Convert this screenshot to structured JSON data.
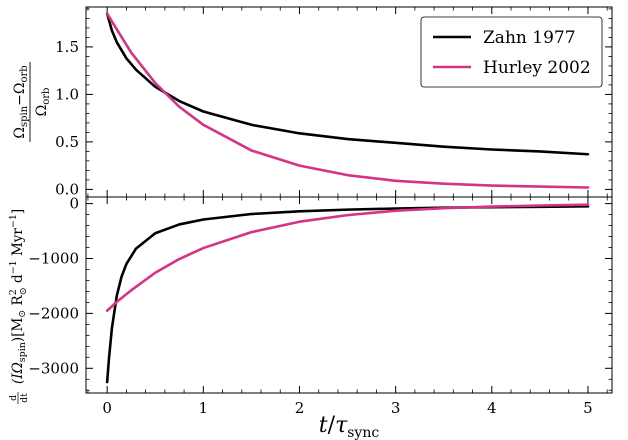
{
  "chart_data": [
    {
      "type": "line",
      "panel": "top",
      "ylabel": {
        "num_a": "Ω",
        "num_a_sub": "spin",
        "num_op": "−",
        "num_b": "Ω",
        "num_b_sub": "orb",
        "den": "Ω",
        "den_sub": "orb"
      },
      "xlim": [
        -0.22,
        5.25
      ],
      "ylim": [
        -0.08,
        1.92
      ],
      "yticks": [
        0.0,
        0.5,
        1.0,
        1.5
      ],
      "ytick_labels": [
        "0.0",
        "0.5",
        "1.0",
        "1.5"
      ],
      "grid": false,
      "legend": "top-right",
      "series": [
        {
          "name": "Zahn 1977",
          "color": "#000000",
          "x": [
            0,
            0.05,
            0.1,
            0.2,
            0.3,
            0.5,
            0.75,
            1.0,
            1.5,
            2.0,
            2.5,
            3.0,
            3.5,
            4.0,
            4.5,
            5.0
          ],
          "y": [
            1.85,
            1.67,
            1.55,
            1.38,
            1.26,
            1.08,
            0.93,
            0.82,
            0.68,
            0.59,
            0.53,
            0.49,
            0.45,
            0.42,
            0.4,
            0.37
          ]
        },
        {
          "name": "Hurley 2002",
          "color": "#d63384",
          "x": [
            0,
            0.25,
            0.5,
            0.75,
            1.0,
            1.5,
            2.0,
            2.5,
            3.0,
            3.5,
            4.0,
            4.5,
            5.0
          ],
          "y": [
            1.85,
            1.44,
            1.12,
            0.87,
            0.68,
            0.41,
            0.25,
            0.15,
            0.09,
            0.06,
            0.04,
            0.03,
            0.02
          ]
        }
      ]
    },
    {
      "type": "line",
      "panel": "bottom",
      "xlabel": {
        "main": "t",
        "sep": "/",
        "tau": "τ",
        "tau_sub": "sync"
      },
      "ylabel": {
        "deriv_num": "d",
        "deriv_den": "dt",
        "body": "(IΩ",
        "body_sub": "spin",
        "body_close": ")[M",
        "msun": "⊙",
        "r": " R",
        "r_sup": "2",
        "r_sub": "⊙",
        "units_tail": " d",
        "d_sup": "−1",
        "myr": " Myr",
        "myr_sup": "−1",
        "end": "]"
      },
      "xlim": [
        -0.22,
        5.25
      ],
      "ylim": [
        -3450,
        120
      ],
      "xticks": [
        0,
        1,
        2,
        3,
        4,
        5
      ],
      "xtick_labels": [
        "0",
        "1",
        "2",
        "3",
        "4",
        "5"
      ],
      "yticks": [
        0,
        -1000,
        -2000,
        -3000
      ],
      "ytick_labels": [
        "0",
        "−1000",
        "−2000",
        "−3000"
      ],
      "grid": false,
      "series": [
        {
          "name": "Zahn 1977",
          "color": "#000000",
          "x": [
            0.0,
            0.02,
            0.05,
            0.1,
            0.15,
            0.2,
            0.3,
            0.5,
            0.75,
            1.0,
            1.5,
            2.0,
            2.5,
            3.0,
            3.5,
            4.0,
            4.5,
            5.0
          ],
          "y": [
            -3250,
            -2800,
            -2260,
            -1680,
            -1330,
            -1100,
            -820,
            -540,
            -380,
            -290,
            -190,
            -140,
            -110,
            -90,
            -75,
            -65,
            -58,
            -50
          ]
        },
        {
          "name": "Hurley 2002",
          "color": "#d63384",
          "x": [
            0.0,
            0.1,
            0.25,
            0.5,
            0.75,
            1.0,
            1.5,
            2.0,
            2.5,
            3.0,
            3.5,
            4.0,
            4.5,
            5.0
          ],
          "y": [
            -1950,
            -1790,
            -1580,
            -1260,
            -1010,
            -810,
            -520,
            -330,
            -210,
            -130,
            -85,
            -55,
            -35,
            -20
          ]
        }
      ]
    }
  ]
}
